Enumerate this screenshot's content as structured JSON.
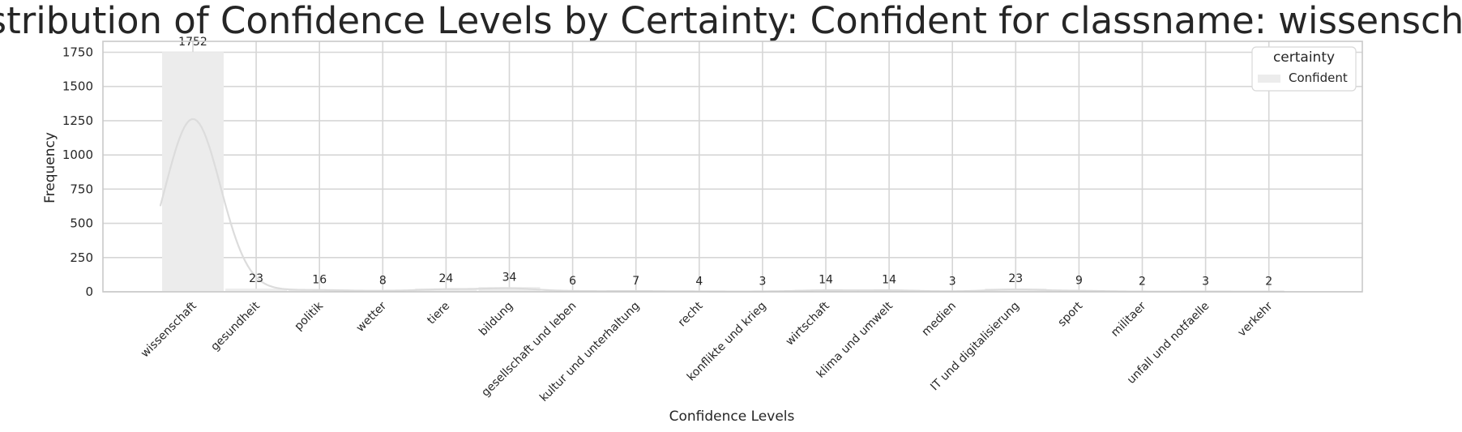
{
  "chart_data": {
    "type": "bar",
    "title": "Distribution of Confidence Levels by Certainty: Confident for classname: wissenschaft",
    "xlabel": "Confidence Levels",
    "ylabel": "Frequency",
    "categories": [
      "wissenschaft",
      "gesundheit",
      "politik",
      "wetter",
      "tiere",
      "bildung",
      "gesellschaft und leben",
      "kultur und unterhaltung",
      "recht",
      "konflikte und krieg",
      "wirtschaft",
      "klima und umwelt",
      "medien",
      "IT und digitalisierung",
      "sport",
      "militaer",
      "unfall und notfaelle",
      "verkehr"
    ],
    "series": [
      {
        "name": "Confident",
        "values": [
          1752,
          23,
          16,
          8,
          24,
          34,
          6,
          7,
          4,
          3,
          14,
          14,
          3,
          23,
          9,
          2,
          3,
          2
        ]
      }
    ],
    "ylim": [
      0,
      1830
    ],
    "yticks": [
      0,
      250,
      500,
      750,
      1000,
      1250,
      1500,
      1750
    ],
    "legend": {
      "title": "certainty",
      "placement": "top-right",
      "entries": [
        "Confident"
      ]
    },
    "grid": true,
    "kde_overlay": true,
    "colors": {
      "bar": "#ececec",
      "kde": "#dcdcdc",
      "grid": "#d6d6d6",
      "frame": "#c9c9c9",
      "text": "#262626",
      "label": "#000000"
    }
  }
}
